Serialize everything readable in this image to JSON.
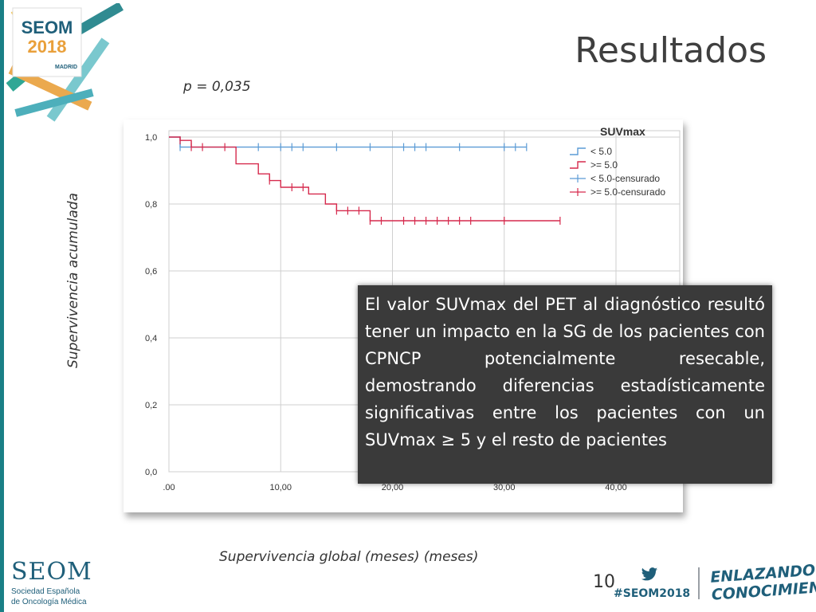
{
  "slide": {
    "title": "Resultados",
    "p_value": "p = 0,035",
    "y_axis_label": "Supervivencia acumulada",
    "x_axis_label": "Supervivencia global (meses) (meses)",
    "callout": "El valor SUVmax del PET al diagnóstico resultó tener un impacto en la SG de los pacientes con CPNCP potencialmente resecable, demostrando diferencias estadísticamente significativas entre los pacientes con un SUVmax ≥ 5 y el resto de pacientes",
    "slide_number": "10",
    "hashtag": "#SEOM2018"
  },
  "branding": {
    "logo_top": {
      "line1": "SEOM",
      "line2": "2018",
      "city": "MADRID"
    },
    "logo_bottom": {
      "name": "SEOM",
      "sub1": "Sociedad Española",
      "sub2": "de Oncología Médica"
    },
    "slogan_line1": "ENLAZANDO",
    "slogan_line2": "CONOCIMIENTO",
    "twitter_icon": "twitter-bird-icon"
  },
  "colors": {
    "accent": "#1a7f86",
    "brand_blue": "#1f5f7a",
    "series_low": "#5b9bd5",
    "series_high": "#d62a4d",
    "callout_bg": "#3a3a3a"
  },
  "chart_data": {
    "type": "line",
    "step": true,
    "legend_title": "SUVmax",
    "legend_position": "top-right",
    "xlim": [
      0,
      40
    ],
    "ylim": [
      0,
      1
    ],
    "x_ticks": [
      ".00",
      "10,00",
      "20,00",
      "30,00",
      "40,00"
    ],
    "y_ticks": [
      "0,0",
      "0,2",
      "0,4",
      "0,6",
      "0,8",
      "1,0"
    ],
    "grid": true,
    "series": [
      {
        "name": "< 5.0",
        "censored_name": "< 5.0-censurado",
        "color": "#5b9bd5",
        "x": [
          0,
          1,
          32
        ],
        "y": [
          1.0,
          0.97,
          0.97
        ],
        "censored_x": [
          1,
          8,
          10,
          11,
          12,
          15,
          18,
          21,
          22,
          23,
          26,
          30,
          31,
          32
        ]
      },
      {
        "name": ">= 5.0",
        "censored_name": ">= 5.0-censurado",
        "color": "#d62a4d",
        "x": [
          0,
          1,
          2,
          5.5,
          6,
          8,
          9,
          10,
          12.5,
          14,
          15,
          18,
          35
        ],
        "y": [
          1.0,
          0.99,
          0.97,
          0.97,
          0.92,
          0.89,
          0.87,
          0.85,
          0.83,
          0.8,
          0.78,
          0.75,
          0.75
        ],
        "censored_x": [
          1,
          2,
          3,
          5,
          9,
          11,
          12,
          15,
          16,
          17,
          18,
          19,
          21,
          22,
          23,
          24,
          25,
          26,
          27,
          30,
          35
        ]
      }
    ]
  }
}
